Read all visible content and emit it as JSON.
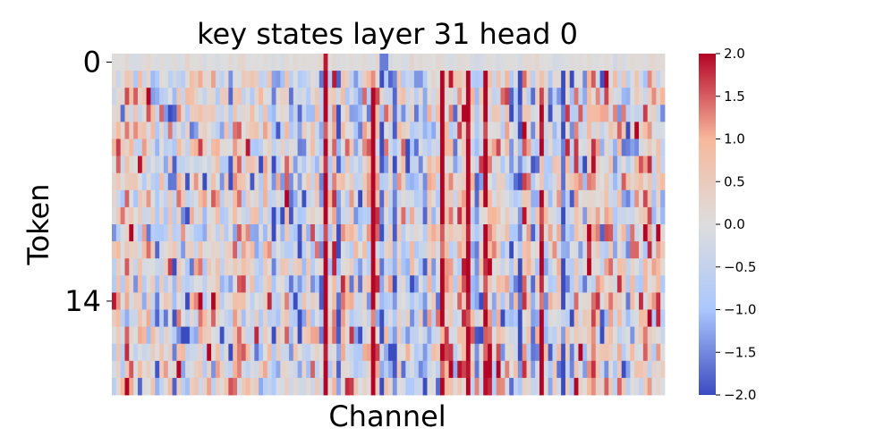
{
  "chart_data": {
    "type": "heatmap",
    "title": "key states layer 31 head 0",
    "xlabel": "Channel",
    "ylabel": "Token",
    "y_ticks": [
      {
        "value": 0,
        "label": "0"
      },
      {
        "value": 14,
        "label": "14"
      }
    ],
    "n_rows": 20,
    "n_cols": 128,
    "value_range": [
      -2.0,
      2.0
    ],
    "colormap": "coolwarm",
    "colormap_colors": [
      "#3b4cc0",
      "#aac7fd",
      "#dddddd",
      "#f7b89c",
      "#b40426"
    ],
    "colorbar_ticks": [
      "2.0",
      "1.5",
      "1.0",
      "0.5",
      "0.0",
      "−0.5",
      "−1.0",
      "−1.5",
      "−2.0"
    ],
    "colorbar_tick_values": [
      2.0,
      1.5,
      1.0,
      0.5,
      0.0,
      -0.5,
      -1.0,
      -1.5,
      -2.0
    ],
    "strong_positive_columns": [
      49,
      60,
      76,
      82,
      86,
      99
    ],
    "strong_negative_columns": [
      52,
      62,
      65,
      94,
      104
    ],
    "row0_note_columns": [
      49,
      62,
      63
    ],
    "sample_values_row0": [
      0.0,
      0.0,
      0.0,
      0.0,
      0.0,
      0.0,
      0.0,
      0.0,
      0.0,
      0.0
    ],
    "sample_values_row14_col0": 1.9
  }
}
